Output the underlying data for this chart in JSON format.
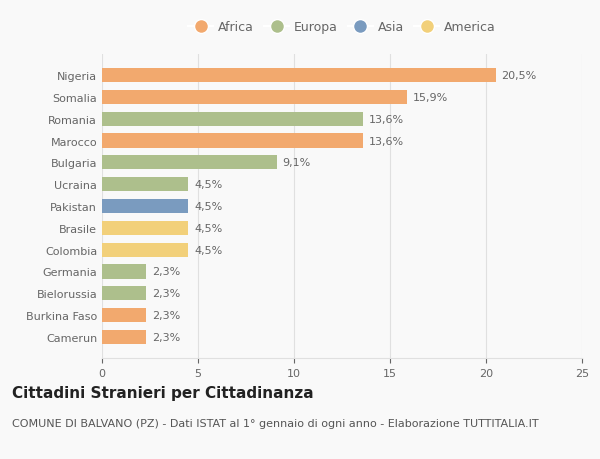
{
  "categories": [
    "Nigeria",
    "Somalia",
    "Romania",
    "Marocco",
    "Bulgaria",
    "Ucraina",
    "Pakistan",
    "Brasile",
    "Colombia",
    "Germania",
    "Bielorussia",
    "Burkina Faso",
    "Camerun"
  ],
  "values": [
    20.5,
    15.9,
    13.6,
    13.6,
    9.1,
    4.5,
    4.5,
    4.5,
    4.5,
    2.3,
    2.3,
    2.3,
    2.3
  ],
  "labels": [
    "20,5%",
    "15,9%",
    "13,6%",
    "13,6%",
    "9,1%",
    "4,5%",
    "4,5%",
    "4,5%",
    "4,5%",
    "2,3%",
    "2,3%",
    "2,3%",
    "2,3%"
  ],
  "colors": [
    "#F2A96E",
    "#F2A96E",
    "#ADBF8C",
    "#F2A96E",
    "#ADBF8C",
    "#ADBF8C",
    "#7A9BBF",
    "#F2D07A",
    "#F2D07A",
    "#ADBF8C",
    "#ADBF8C",
    "#F2A96E",
    "#F2A96E"
  ],
  "legend_labels": [
    "Africa",
    "Europa",
    "Asia",
    "America"
  ],
  "legend_colors": [
    "#F2A96E",
    "#ADBF8C",
    "#7A9BBF",
    "#F2D07A"
  ],
  "title": "Cittadini Stranieri per Cittadinanza",
  "subtitle": "COMUNE DI BALVANO (PZ) - Dati ISTAT al 1° gennaio di ogni anno - Elaborazione TUTTITALIA.IT",
  "xlim": [
    0,
    25
  ],
  "xticks": [
    0,
    5,
    10,
    15,
    20,
    25
  ],
  "background_color": "#f9f9f9",
  "grid_color": "#e0e0e0",
  "title_fontsize": 11,
  "subtitle_fontsize": 8,
  "label_fontsize": 8,
  "tick_fontsize": 8,
  "legend_fontsize": 9,
  "bar_height": 0.65
}
